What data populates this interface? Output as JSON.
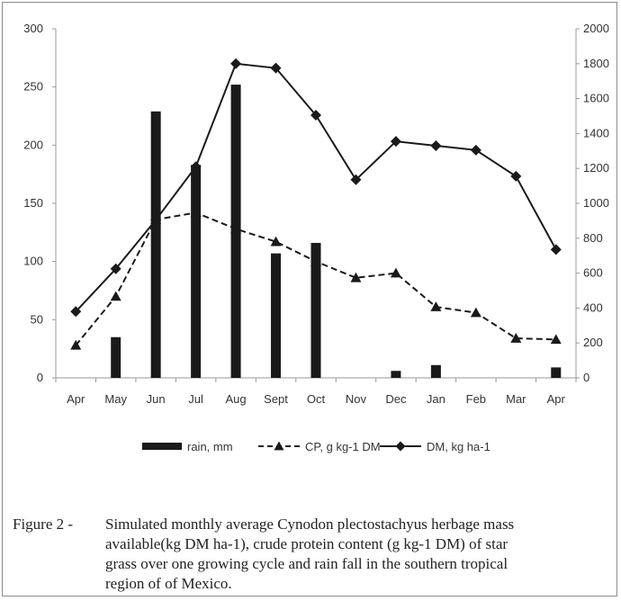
{
  "chart_data": {
    "type": "bar+line",
    "categories": [
      "Apr",
      "May",
      "Jun",
      "Jul",
      "Aug",
      "Sept",
      "Oct",
      "Nov",
      "Dec",
      "Jan",
      "Feb",
      "Mar",
      "Apr"
    ],
    "left_axis": {
      "ticks": [
        "0",
        "50",
        "100",
        "150",
        "200",
        "250",
        "300"
      ],
      "ylim": [
        0,
        300
      ]
    },
    "right_axis": {
      "ticks": [
        "0",
        "200",
        "400",
        "600",
        "800",
        "1000",
        "1200",
        "1400",
        "1600",
        "1800",
        "2000"
      ],
      "ylim": [
        0,
        2000
      ]
    },
    "series": [
      {
        "name": "rain, mm",
        "kind": "bar",
        "axis": "left",
        "color": "#1a1a1a",
        "values": [
          0,
          35,
          229,
          183,
          252,
          107,
          116,
          0,
          6,
          11,
          0,
          0,
          9
        ]
      },
      {
        "name": "CP, g kg-1 DM",
        "kind": "line",
        "dash": true,
        "marker": "triangle",
        "axis": "left",
        "color": "#1a1a1a",
        "values": [
          28,
          70,
          136,
          142,
          128,
          117,
          100,
          86,
          90,
          61,
          56,
          34,
          33
        ]
      },
      {
        "name": "DM, kg ha-1",
        "kind": "line",
        "dash": false,
        "marker": "diamond",
        "axis": "right",
        "color": "#1a1a1a",
        "values": [
          380,
          625,
          905,
          1210,
          1800,
          1775,
          1505,
          1135,
          1355,
          1330,
          1305,
          1155,
          735
        ]
      }
    ],
    "legend_position": "bottom"
  },
  "caption": {
    "label": "Figure 2 -",
    "lines": [
      "Simulated monthly average Cynodon plectostachyus herbage mass",
      "available(kg DM ha-1), crude protein content (g kg-1 DM) of star",
      "grass over one growing cycle and rain fall in the southern tropical",
      "region of of Mexico."
    ]
  }
}
